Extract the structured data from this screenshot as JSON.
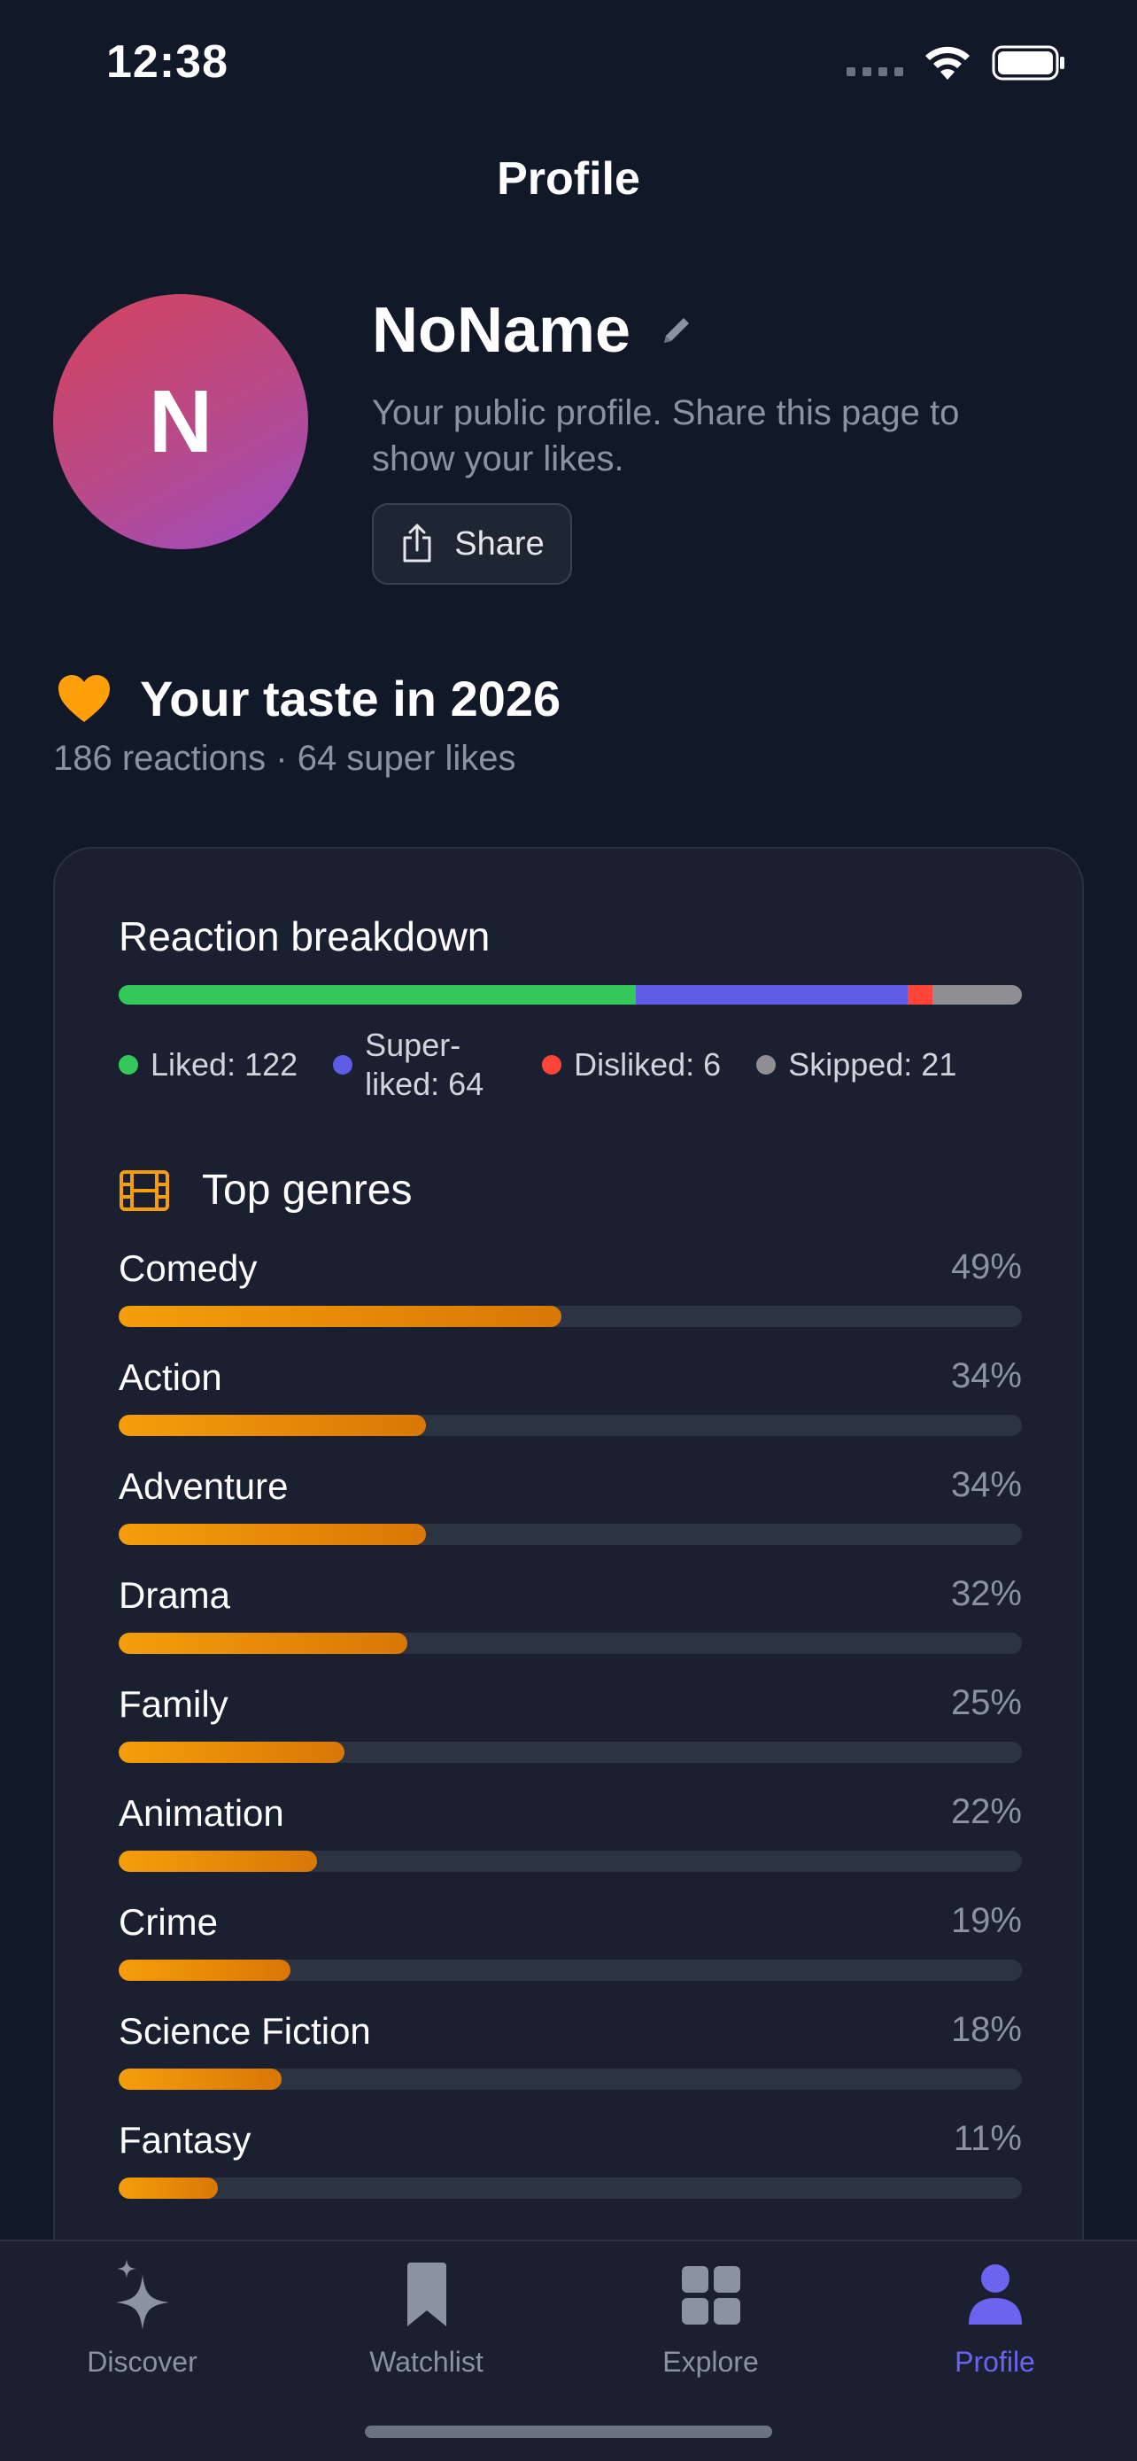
{
  "status_bar": {
    "time": "12:38"
  },
  "nav": {
    "title": "Profile"
  },
  "profile": {
    "initial": "N",
    "name": "NoName",
    "description": "Your public profile. Share this page to show your likes.",
    "share_label": "Share"
  },
  "taste": {
    "title": "Your taste in 2026",
    "subtitle": "186 reactions · 64 super likes"
  },
  "breakdown": {
    "title": "Reaction breakdown",
    "items": [
      {
        "label": "Liked: 122",
        "value": 122,
        "color": "#34c759"
      },
      {
        "label": "Super-liked: 64",
        "value": 64,
        "color": "#5e5ce6"
      },
      {
        "label": "Disliked: 6",
        "value": 6,
        "color": "#ff453a"
      },
      {
        "label": "Skipped: 21",
        "value": 21,
        "color": "#8e8e93"
      }
    ]
  },
  "genres": {
    "title": "Top genres",
    "items": [
      {
        "name": "Comedy",
        "pct_label": "49%",
        "pct": 49
      },
      {
        "name": "Action",
        "pct_label": "34%",
        "pct": 34
      },
      {
        "name": "Adventure",
        "pct_label": "34%",
        "pct": 34
      },
      {
        "name": "Drama",
        "pct_label": "32%",
        "pct": 32
      },
      {
        "name": "Family",
        "pct_label": "25%",
        "pct": 25
      },
      {
        "name": "Animation",
        "pct_label": "22%",
        "pct": 22
      },
      {
        "name": "Crime",
        "pct_label": "19%",
        "pct": 19
      },
      {
        "name": "Science Fiction",
        "pct_label": "18%",
        "pct": 18
      },
      {
        "name": "Fantasy",
        "pct_label": "11%",
        "pct": 11
      }
    ]
  },
  "tabs": [
    {
      "label": "Discover",
      "icon": "sparkles-icon",
      "active": false
    },
    {
      "label": "Watchlist",
      "icon": "bookmark-icon",
      "active": false
    },
    {
      "label": "Explore",
      "icon": "grid-icon",
      "active": false
    },
    {
      "label": "Profile",
      "icon": "person-icon",
      "active": true
    }
  ],
  "colors": {
    "accent": "#6c63f0",
    "genre_bar": "#f59e0b",
    "background": "#111827"
  }
}
